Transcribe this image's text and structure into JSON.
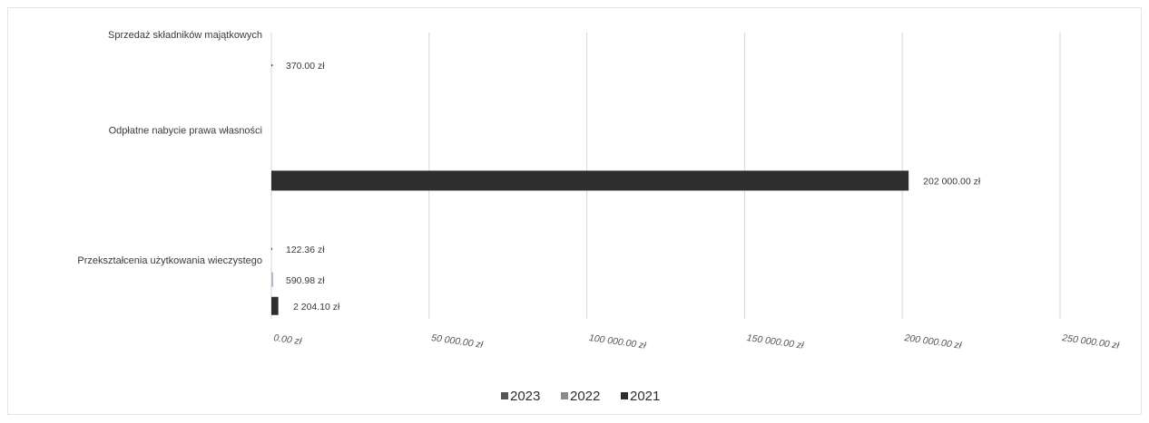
{
  "chart_data": {
    "type": "bar",
    "orientation": "horizontal",
    "categories": [
      "Sprzedaż składników majątkowych",
      "Odpłatne nabycie prawa własności",
      "Przekształcenia użytkowania wieczystego"
    ],
    "series": [
      {
        "name": "2023",
        "color": "#3f3f3f",
        "values": [
          370.0,
          null,
          122.36
        ],
        "labels": [
          "370.00 zł",
          null,
          "122.36 zł"
        ]
      },
      {
        "name": "2022",
        "color": "#8a8a8a",
        "values": [
          null,
          null,
          590.98
        ],
        "labels": [
          null,
          null,
          "590.98 zł"
        ]
      },
      {
        "name": "2021",
        "color": "#2e2e2e",
        "values": [
          null,
          202000.0,
          2204.1
        ],
        "labels": [
          null,
          "202 000.00 zł",
          "2 204.10 zł"
        ]
      }
    ],
    "xlim": [
      0,
      250000
    ],
    "xticks": [
      {
        "value": 0,
        "label": "0.00 zł"
      },
      {
        "value": 50000,
        "label": "50 000.00 zł"
      },
      {
        "value": 100000,
        "label": "100 000.00 zł"
      },
      {
        "value": 150000,
        "label": "150 000.00 zł"
      },
      {
        "value": 200000,
        "label": "200 000.00 zł"
      },
      {
        "value": 250000,
        "label": "250 000.00 zł"
      }
    ],
    "grid": true,
    "legend_position": "bottom",
    "title": "",
    "xlabel": "",
    "ylabel": ""
  }
}
